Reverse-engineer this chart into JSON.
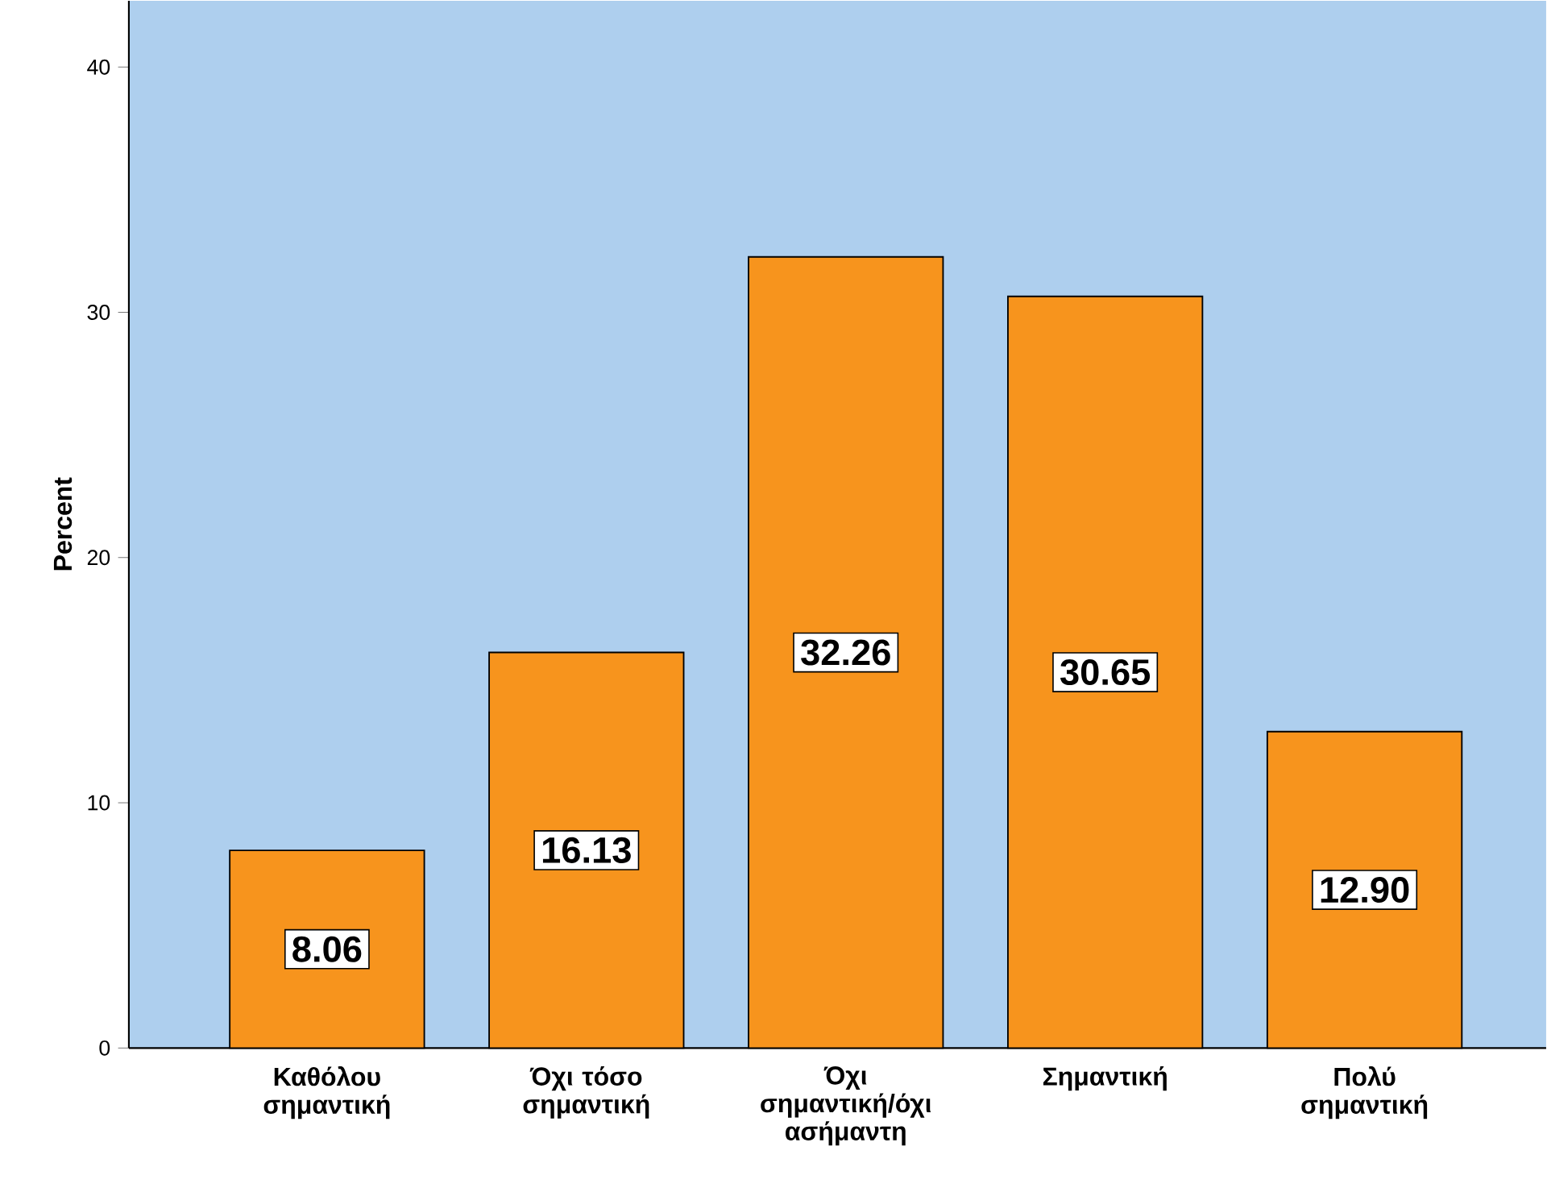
{
  "chart_data": {
    "type": "bar",
    "ylabel": "Percent",
    "categories": [
      "Καθόλου σημαντική",
      "Όχι τόσο σημαντική",
      "Όχι σημαντική/όχι ασήμαντη",
      "Σημαντική",
      "Πολύ σημαντική"
    ],
    "values": [
      8.06,
      16.13,
      32.26,
      30.65,
      12.9
    ],
    "color": "#f7941d",
    "ylim": [
      0,
      42.7
    ],
    "yticks": [
      0,
      10,
      20,
      30,
      40
    ],
    "grid": false,
    "value_labels": [
      "8.06",
      "16.13",
      "32.26",
      "30.65",
      "12.90"
    ]
  }
}
